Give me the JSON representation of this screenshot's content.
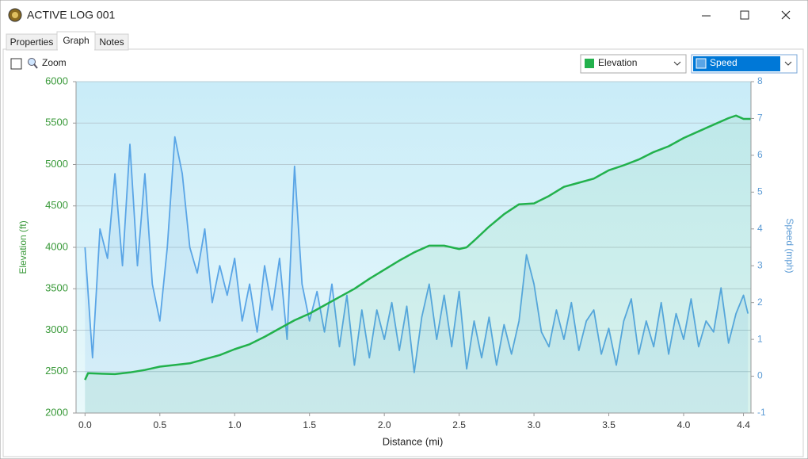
{
  "window": {
    "title": "ACTIVE LOG 001"
  },
  "tabs": [
    "Properties",
    "Graph",
    "Notes"
  ],
  "toolbar": {
    "zoom_label": "Zoom"
  },
  "chart_data": {
    "type": "line",
    "xlabel": "Distance  (mi)",
    "ylabel": "Elevation (ft)",
    "y2label": "Speed (mph)",
    "xlim": [
      -0.06,
      4.45
    ],
    "xticks": [
      {
        "value": 0,
        "label": "0.0"
      },
      0.5,
      {
        "value": 1,
        "label": "1.0"
      },
      1.5,
      {
        "value": 2,
        "label": "2.0"
      },
      2.5,
      {
        "value": 3,
        "label": "3.0"
      },
      3.5,
      {
        "value": 4,
        "label": "4.0"
      },
      4.4
    ],
    "ylim": [
      2000,
      6000
    ],
    "yticks": [
      2000,
      2500,
      3000,
      3500,
      4000,
      4500,
      5000,
      5500,
      6000
    ],
    "y2lim": [
      -1,
      8
    ],
    "y2ticks": [
      -1,
      0,
      1,
      2,
      3,
      4,
      5,
      6,
      7,
      8
    ],
    "grid": true,
    "series": [
      {
        "name": "Elevation",
        "color": "#22b14c",
        "x": [
          0,
          0.02,
          0.2,
          0.3,
          0.4,
          0.5,
          0.6,
          0.7,
          0.8,
          0.9,
          1.0,
          1.1,
          1.2,
          1.3,
          1.4,
          1.5,
          1.6,
          1.7,
          1.8,
          1.9,
          2.0,
          2.1,
          2.2,
          2.3,
          2.4,
          2.5,
          2.55,
          2.6,
          2.7,
          2.8,
          2.9,
          3.0,
          3.1,
          3.2,
          3.3,
          3.4,
          3.5,
          3.6,
          3.7,
          3.8,
          3.9,
          4.0,
          4.1,
          4.2,
          4.3,
          4.35,
          4.4,
          4.45
        ],
        "values": [
          2400,
          2480,
          2470,
          2490,
          2520,
          2560,
          2580,
          2600,
          2650,
          2700,
          2770,
          2830,
          2920,
          3020,
          3120,
          3200,
          3300,
          3400,
          3500,
          3620,
          3730,
          3840,
          3940,
          4020,
          4020,
          3980,
          4000,
          4080,
          4250,
          4400,
          4520,
          4530,
          4620,
          4730,
          4780,
          4830,
          4930,
          4990,
          5060,
          5150,
          5220,
          5320,
          5400,
          5480,
          5560,
          5590,
          5550,
          5550
        ]
      },
      {
        "name": "Speed",
        "color": "#5aa5e6",
        "axis": "y2",
        "x": [
          0.0,
          0.05,
          0.1,
          0.15,
          0.2,
          0.25,
          0.3,
          0.35,
          0.4,
          0.45,
          0.5,
          0.55,
          0.6,
          0.65,
          0.7,
          0.75,
          0.8,
          0.85,
          0.9,
          0.95,
          1.0,
          1.05,
          1.1,
          1.15,
          1.2,
          1.25,
          1.3,
          1.35,
          1.4,
          1.45,
          1.5,
          1.55,
          1.6,
          1.65,
          1.7,
          1.75,
          1.8,
          1.85,
          1.9,
          1.95,
          2.0,
          2.05,
          2.1,
          2.15,
          2.2,
          2.25,
          2.3,
          2.35,
          2.4,
          2.45,
          2.5,
          2.55,
          2.6,
          2.65,
          2.7,
          2.75,
          2.8,
          2.85,
          2.9,
          2.95,
          3.0,
          3.05,
          3.1,
          3.15,
          3.2,
          3.25,
          3.3,
          3.35,
          3.4,
          3.45,
          3.5,
          3.55,
          3.6,
          3.65,
          3.7,
          3.75,
          3.8,
          3.85,
          3.9,
          3.95,
          4.0,
          4.05,
          4.1,
          4.15,
          4.2,
          4.25,
          4.3,
          4.35,
          4.4,
          4.43
        ],
        "values": [
          3.5,
          0.5,
          4,
          3.2,
          5.5,
          3,
          6.3,
          3,
          5.5,
          2.5,
          1.5,
          3.5,
          6.5,
          5.5,
          3.5,
          2.8,
          4,
          2,
          3,
          2.2,
          3.2,
          1.5,
          2.5,
          1.2,
          3,
          1.8,
          3.2,
          1,
          5.7,
          2.5,
          1.5,
          2.3,
          1.2,
          2.5,
          0.8,
          2.2,
          0.3,
          1.8,
          0.5,
          1.8,
          1,
          2,
          0.7,
          1.9,
          0.1,
          1.6,
          2.5,
          1,
          2.2,
          0.8,
          2.3,
          0.2,
          1.5,
          0.5,
          1.6,
          0.3,
          1.4,
          0.6,
          1.5,
          3.3,
          2.5,
          1.2,
          0.8,
          1.8,
          1,
          2,
          0.7,
          1.5,
          1.8,
          0.6,
          1.3,
          0.3,
          1.5,
          2.1,
          0.6,
          1.5,
          0.8,
          2,
          0.6,
          1.7,
          1,
          2.1,
          0.8,
          1.5,
          1.2,
          2.4,
          0.9,
          1.7,
          2.2,
          1.7
        ]
      }
    ]
  }
}
